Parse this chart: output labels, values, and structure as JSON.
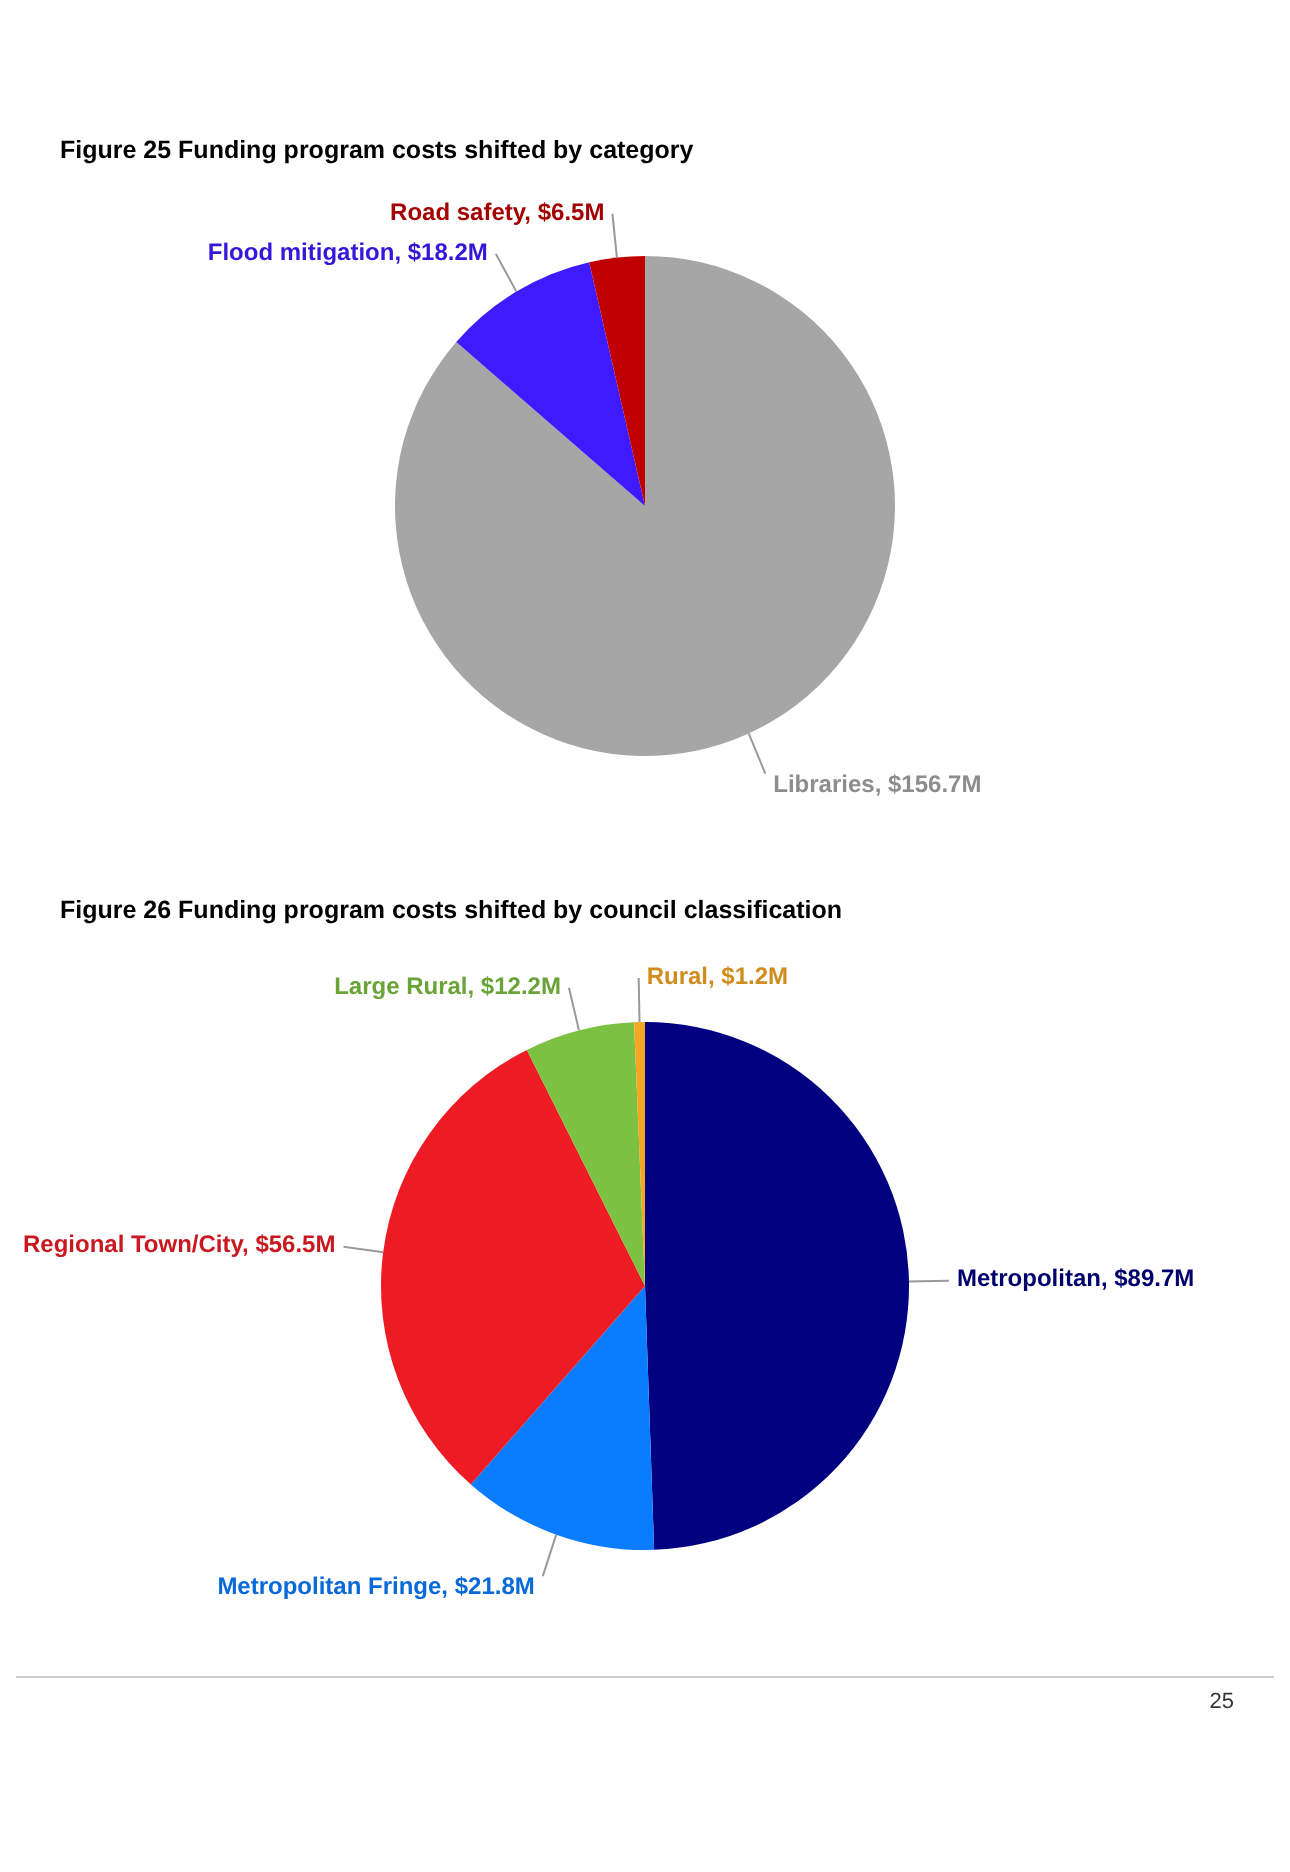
{
  "chart_data": [
    {
      "type": "pie",
      "title": "Figure 25  Funding program costs shifted by category",
      "categories": [
        "Libraries",
        "Flood mitigation",
        "Road safety"
      ],
      "values": [
        156.7,
        18.2,
        6.5
      ],
      "value_labels": [
        "$156.7M",
        "$18.2M",
        "$6.5M"
      ],
      "colors": [
        "#a6a6a6",
        "#3f1aff",
        "#c00000"
      ],
      "legend": false
    },
    {
      "type": "pie",
      "title": "Figure 26  Funding program costs shifted by council classification",
      "categories": [
        "Metropolitan",
        "Metropolitan Fringe",
        "Regional Town/City",
        "Large Rural",
        "Rural"
      ],
      "values": [
        89.7,
        21.8,
        56.5,
        12.2,
        1.2
      ],
      "value_labels": [
        "$89.7M",
        "$21.8M",
        "$56.5M",
        "$12.2M",
        "$1.2M"
      ],
      "colors": [
        "#000080",
        "#0a7cff",
        "#ed1c24",
        "#7dc142",
        "#f5a623"
      ],
      "legend": false,
      "annotations": [
        "25"
      ]
    }
  ]
}
